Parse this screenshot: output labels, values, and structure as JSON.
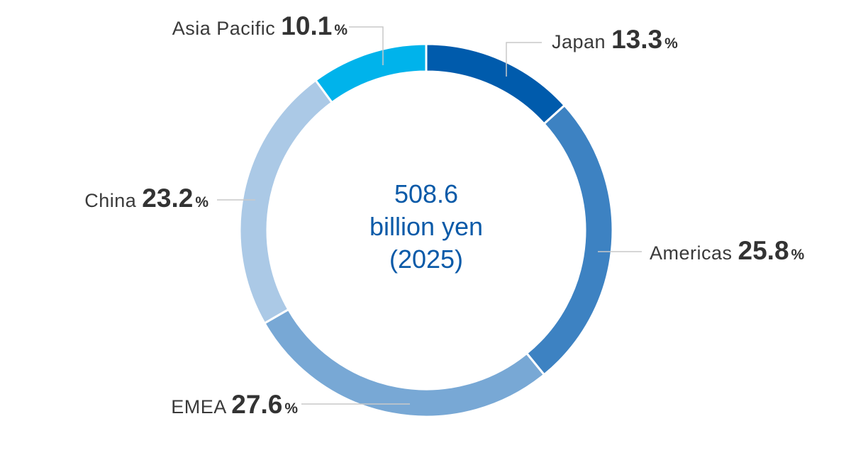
{
  "chart_data": {
    "type": "pie",
    "style": "donut",
    "unit": "%",
    "center_label": {
      "value": "508.6",
      "unit": "billion yen",
      "year": "(2025)"
    },
    "slices": [
      {
        "label": "Japan",
        "value": 13.3,
        "value_text": "13.3",
        "color": "#005bac"
      },
      {
        "label": "Americas",
        "value": 25.8,
        "value_text": "25.8",
        "color": "#3d82c2"
      },
      {
        "label": "EMEA",
        "value": 27.6,
        "value_text": "27.6",
        "color": "#78a8d5"
      },
      {
        "label": "China",
        "value": 23.2,
        "value_text": "23.2",
        "color": "#abc9e6"
      },
      {
        "label": "Asia Pacific",
        "value": 10.1,
        "value_text": "10.1",
        "color": "#00b3eb"
      }
    ]
  }
}
